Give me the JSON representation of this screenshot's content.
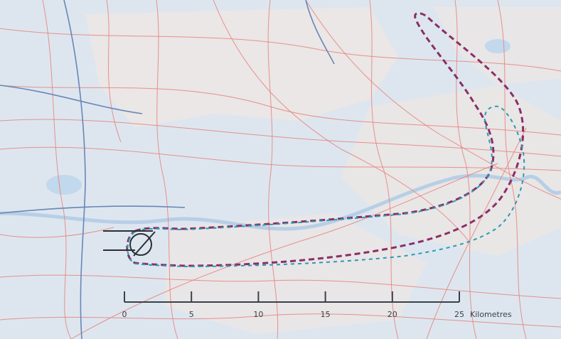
{
  "map": {
    "base_color": "#dde6ef",
    "land_color": "#ece6e4",
    "water_color": "#c2d8ec",
    "road_color": "#e8807a",
    "rail_color": "#6a86b6",
    "river_color": "#b7cfe6"
  },
  "contours": [
    {
      "name": "outer-contour",
      "color": "#8a2f66",
      "style": "dashed"
    },
    {
      "name": "inner-contour",
      "color": "#2a9bb4",
      "style": "dashed"
    }
  ],
  "runway": {
    "color": "#2b2f33"
  },
  "scale_bar": {
    "ticks": [
      "0",
      "5",
      "10",
      "15",
      "20",
      "25"
    ],
    "unit": "Kilometres",
    "color": "#3a4048"
  }
}
